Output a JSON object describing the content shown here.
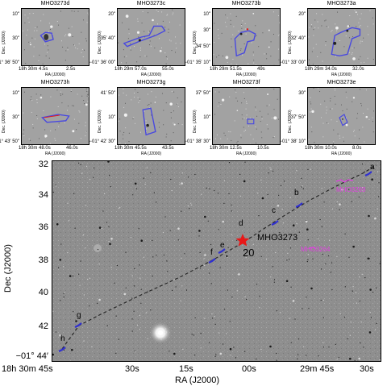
{
  "cutouts": [
    {
      "title": "MHO3273d",
      "yticks": [
        "10\"",
        "30\"",
        "−01° 36′ 50\""
      ],
      "xticks": [
        "18h 30m 4.5s",
        "2.5s"
      ],
      "xlabel": "RA (J2000)",
      "ylabel": "Dec. (J2000)"
    },
    {
      "title": "MHO3273c",
      "yticks": [
        "20\"",
        "35′ 40\"",
        "−01° 36′ 00\""
      ],
      "xticks": [
        "18h 29m 57.0s",
        "55.0s"
      ],
      "xlabel": "RA (J2000)",
      "ylabel": "Dec. (J2000)"
    },
    {
      "title": "MHO3273b",
      "yticks": [
        "10\"",
        "30\"",
        "34′ 50\"",
        "−01° 35′ 10\""
      ],
      "xticks": [
        "18h 29m 51.5s",
        "49s"
      ],
      "xlabel": "RA (J2000)",
      "ylabel": "Dec. (J2000)"
    },
    {
      "title": "MHO3273a",
      "yticks": [
        "20\"",
        "32′ 40\"",
        "−01° 33′ 00\""
      ],
      "xticks": [
        "18h 29m 34.0s",
        "32.0s"
      ],
      "xlabel": "RA (J2000)",
      "ylabel": "Dec. (J2000)"
    },
    {
      "title": "MHO3273h",
      "yticks": [
        "10\"",
        "30\"",
        "−01° 43′ 50\""
      ],
      "xticks": [
        "18h 30m 48.0s",
        "46.0s"
      ],
      "xlabel": "RA (J2000)",
      "ylabel": "Dec. (J2000)"
    },
    {
      "title": "MHO3273g",
      "yticks": [
        "41′ 50\"",
        "10\"",
        "−01° 42′ 30\""
      ],
      "xticks": [
        "18h 30m 45.5s",
        "43.5s"
      ],
      "xlabel": "RA (J2000)",
      "ylabel": "Dec. (J2000)"
    },
    {
      "title": "MHO3273f",
      "yticks": [
        "37′ 50\"",
        "10\"",
        "−01° 38′ 30\""
      ],
      "xticks": [
        "18h 30m 12.5s",
        "10.5s"
      ],
      "xlabel": "RA (J2000)",
      "ylabel": "Dec. (J2000)"
    },
    {
      "title": "MHO3273e",
      "yticks": [
        "30\"",
        "37′ 50\"",
        "−01° 38′ 10\""
      ],
      "xticks": [
        "18h 30m 10.0s",
        "8.0s"
      ],
      "xlabel": "RA (J2000)",
      "ylabel": "Dec. (J2000)"
    }
  ],
  "main": {
    "xlabel": "RA (J2000)",
    "ylabel": "Dec (J2000)",
    "yticks": [
      "32",
      "34",
      "36",
      "38",
      "40",
      "42",
      "−01° 44′"
    ],
    "xticks": [
      "18h 30m 45s",
      "30s",
      "15s",
      "00s",
      "29m 45s",
      "30s"
    ],
    "knots": [
      "a",
      "b",
      "c",
      "d",
      "e",
      "f",
      "g",
      "h"
    ],
    "source_label": "MHO3273",
    "source_number": "20",
    "other_labels": [
      "MHO3269",
      "MHO3264"
    ],
    "colors": {
      "jet": "#3030d0",
      "outline": "#6060ff",
      "other": "#e040e0",
      "star": "#e81818",
      "line": "#222222"
    }
  }
}
